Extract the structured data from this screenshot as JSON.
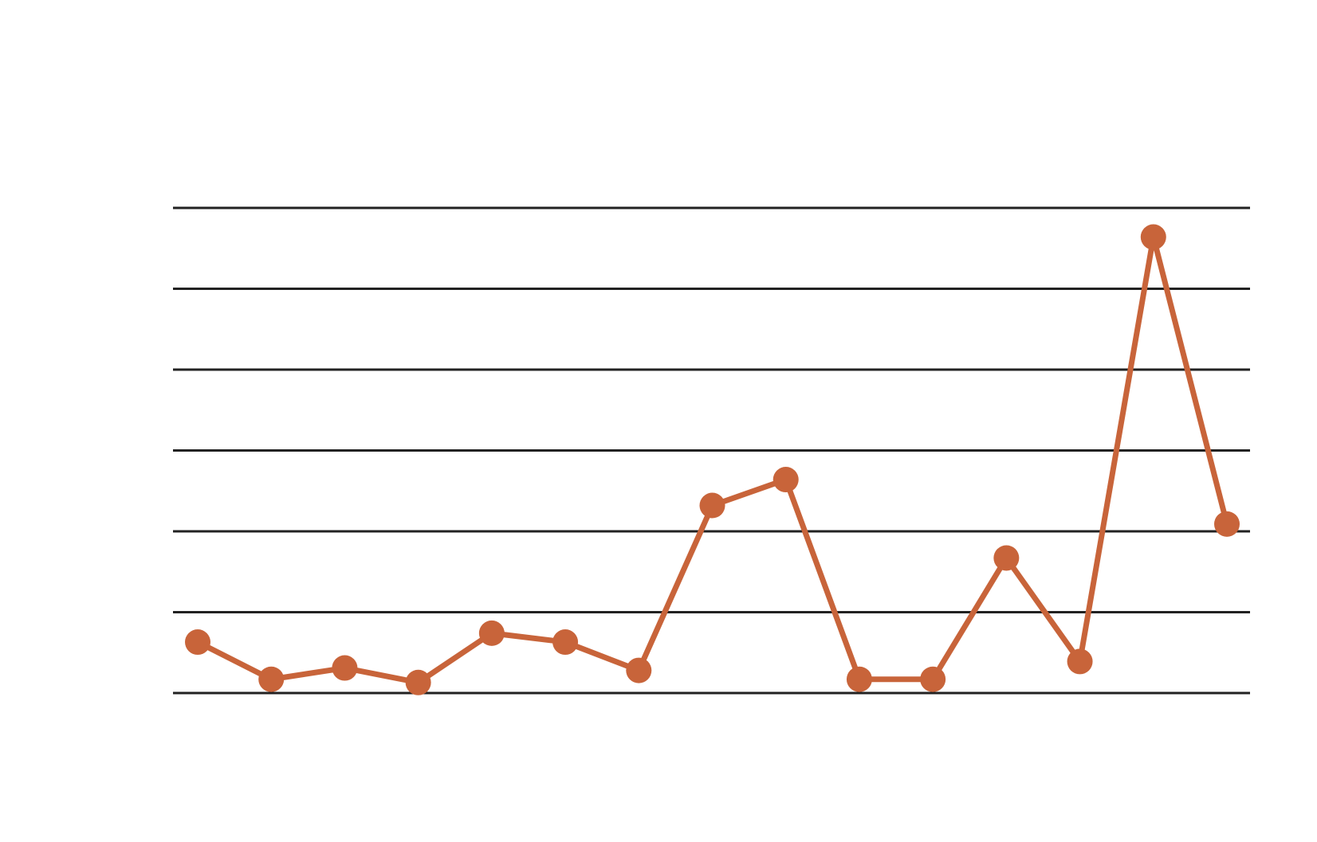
{
  "chart_data": {
    "type": "line",
    "categories": [
      null,
      null,
      null,
      null,
      null,
      null,
      null,
      null,
      null,
      null,
      null,
      null,
      null,
      null,
      null
    ],
    "series": [
      {
        "color": "#c8643a",
        "values": [
          0.63,
          0.17,
          0.31,
          0.13,
          0.74,
          0.63,
          0.28,
          2.32,
          2.64,
          0.17,
          0.17,
          1.67,
          0.39,
          5.64,
          2.09
        ]
      }
    ],
    "ylim": [
      0,
      6
    ],
    "yticks": [
      0,
      1,
      2,
      3,
      4,
      5,
      6
    ],
    "grid": true
  }
}
